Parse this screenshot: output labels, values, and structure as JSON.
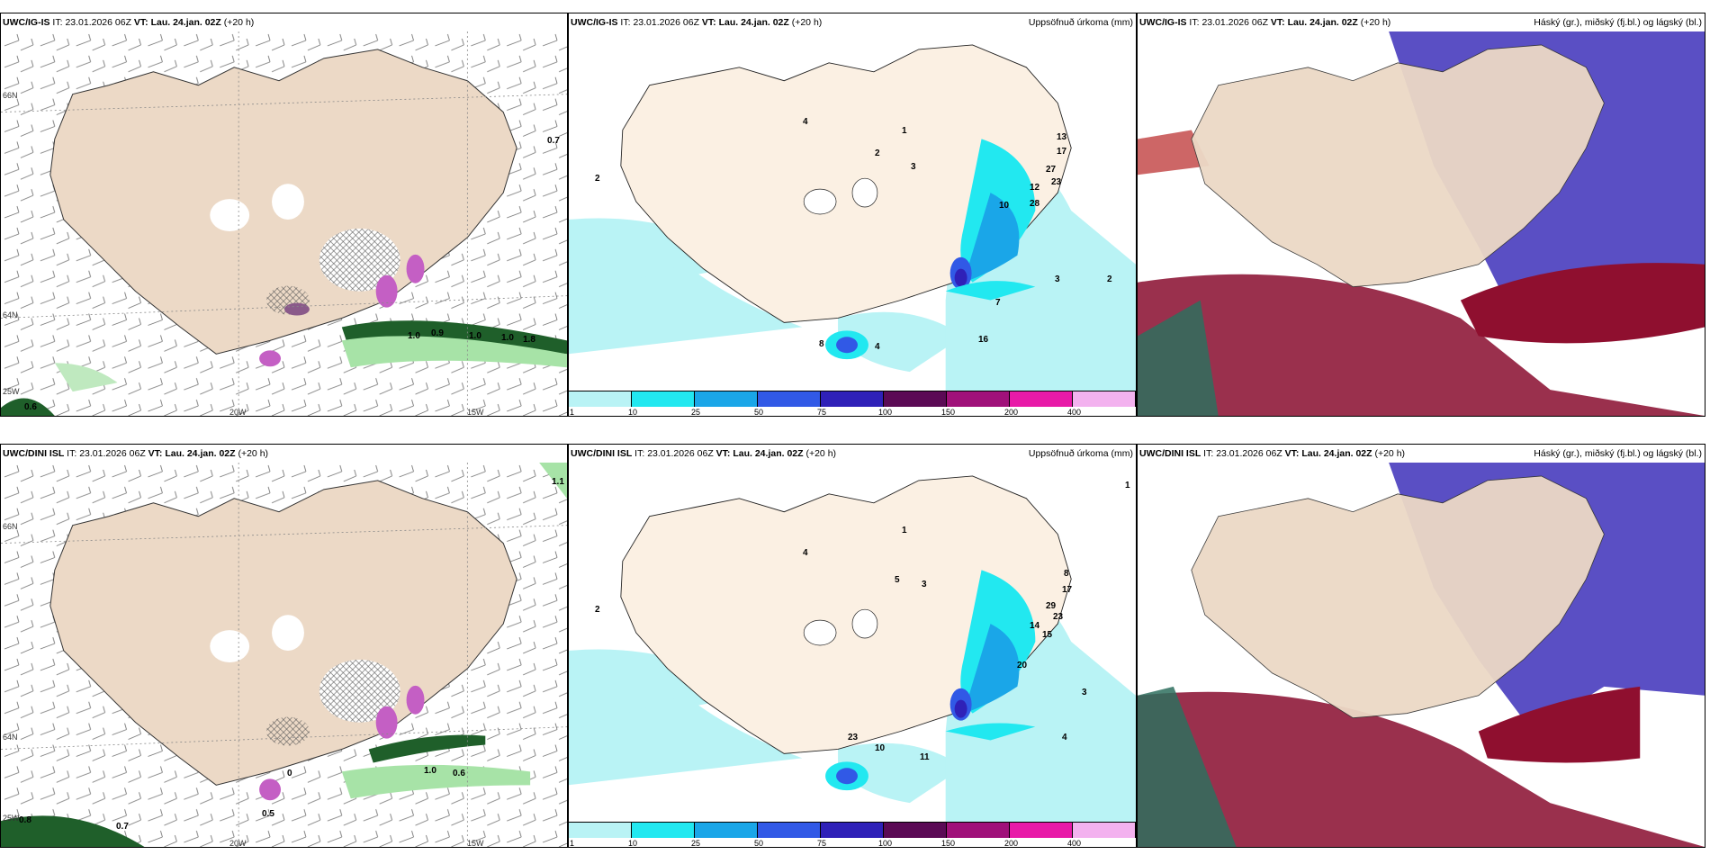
{
  "rows": [
    {
      "model": "UWC/IG-IS",
      "it_label": "IT:",
      "it_value": "23.01.2026 06Z",
      "vt_label": "VT:",
      "vt_value": "Lau. 24.jan. 02Z",
      "lead": "(+20 h)",
      "wind_values": [
        "0.7",
        "1.0",
        "0.9",
        "1.0",
        "1.8",
        "1.0",
        "0.6"
      ],
      "precip_values": [
        "2",
        "4",
        "1",
        "2",
        "3",
        "13",
        "17",
        "27",
        "23",
        "12",
        "28",
        "10",
        "8",
        "4",
        "16",
        "7",
        "3",
        "2"
      ]
    },
    {
      "model": "UWC/DINI ISL",
      "it_label": "IT:",
      "it_value": "23.01.2026 06Z",
      "vt_label": "VT:",
      "vt_value": "Lau. 24.jan. 02Z",
      "lead": "(+20 h)",
      "wind_values": [
        "1.1",
        "0",
        "1.0",
        "0.6",
        "0.8",
        "0.7",
        "0.5"
      ],
      "precip_values": [
        "2",
        "4",
        "1",
        "5",
        "3",
        "8",
        "17",
        "29",
        "23",
        "14",
        "15",
        "20",
        "23",
        "10",
        "11",
        "4",
        "3",
        "1"
      ]
    }
  ],
  "precip_title": "Uppsöfnuð úrkoma (mm)",
  "cloud_title": "Háský (gr.), miðský (fj.bl.) og lágský (bl.)",
  "axis_labels": {
    "lon1": "20W",
    "lon2": "15W",
    "lat1": "66N",
    "lat2": "64N",
    "lat3": "25W"
  },
  "colorbar": {
    "ticks": [
      "1",
      "10",
      "25",
      "50",
      "75",
      "100",
      "150",
      "200",
      "400"
    ],
    "colors": [
      "#b9f3f5",
      "#22e8f0",
      "#1aa6e8",
      "#3159e6",
      "#2f21b8",
      "#5b0a55",
      "#a0117a",
      "#e81aa8",
      "#f3b2ef"
    ]
  }
}
